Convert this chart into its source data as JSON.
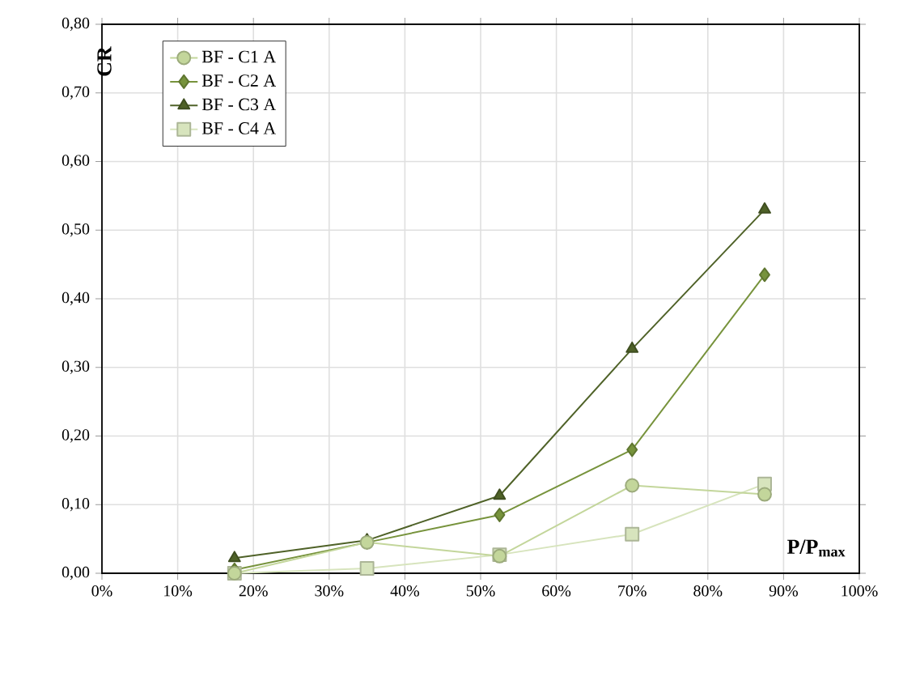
{
  "chart_data": {
    "type": "line",
    "xlabel": "P/P$_{max}$",
    "ylabel": "CR",
    "x": [
      17.5,
      35,
      52.5,
      70,
      87.5
    ],
    "series": [
      {
        "name": "BF - C1 A",
        "color": "#c3d69b",
        "marker": "circle",
        "values": [
          0.0,
          0.045,
          0.025,
          0.128,
          0.115
        ]
      },
      {
        "name": "BF - C2 A",
        "color": "#77933c",
        "marker": "diamond",
        "values": [
          0.005,
          0.045,
          0.085,
          0.18,
          0.435
        ]
      },
      {
        "name": "BF - C3 A",
        "color": "#4f6228",
        "marker": "triangle",
        "values": [
          0.022,
          0.048,
          0.113,
          0.327,
          0.53
        ]
      },
      {
        "name": "BF - C4 A",
        "color": "#d7e4bd",
        "marker": "square",
        "values": [
          0.0,
          0.007,
          0.027,
          0.057,
          0.13
        ]
      }
    ],
    "xlim": [
      0,
      100
    ],
    "xticks": [
      {
        "value": 0,
        "label": "0%"
      },
      {
        "value": 10,
        "label": "10%"
      },
      {
        "value": 20,
        "label": "20%"
      },
      {
        "value": 30,
        "label": "30%"
      },
      {
        "value": 40,
        "label": "40%"
      },
      {
        "value": 50,
        "label": "50%"
      },
      {
        "value": 60,
        "label": "60%"
      },
      {
        "value": 70,
        "label": "70%"
      },
      {
        "value": 80,
        "label": "80%"
      },
      {
        "value": 90,
        "label": "90%"
      },
      {
        "value": 100,
        "label": "100%"
      }
    ],
    "ylim": [
      0,
      0.8
    ],
    "yticks": [
      {
        "value": 0,
        "label": "0,00"
      },
      {
        "value": 0.1,
        "label": "0,10"
      },
      {
        "value": 0.2,
        "label": "0,20"
      },
      {
        "value": 0.3,
        "label": "0,30"
      },
      {
        "value": 0.4,
        "label": "0,40"
      },
      {
        "value": 0.5,
        "label": "0,50"
      },
      {
        "value": 0.6,
        "label": "0,60"
      },
      {
        "value": 0.7,
        "label": "0,70"
      },
      {
        "value": 0.8,
        "label": "0,80"
      }
    ],
    "grid": true,
    "legend": "top left",
    "line_style": "solid"
  }
}
